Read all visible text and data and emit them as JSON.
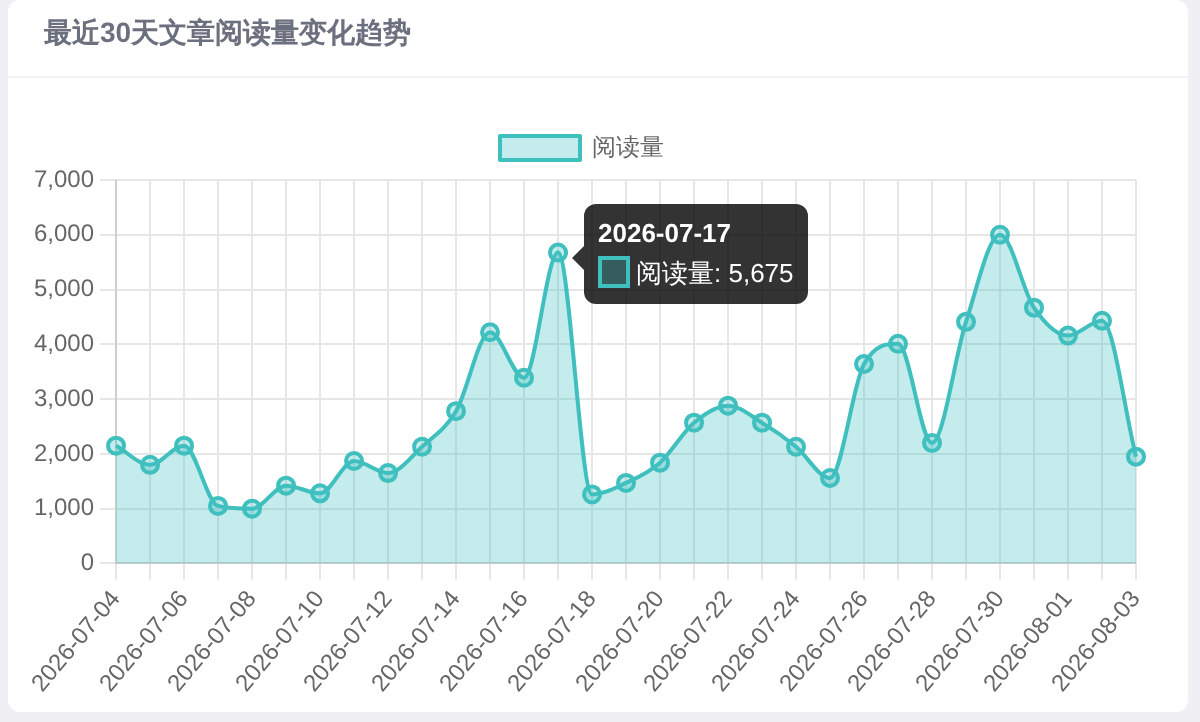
{
  "chart_data": {
    "type": "area",
    "title": "最近30天文章阅读量变化趋势",
    "categories": [
      "2026-07-04",
      null,
      "2026-07-06",
      null,
      "2026-07-08",
      null,
      "2026-07-10",
      null,
      "2026-07-12",
      null,
      "2026-07-14",
      null,
      "2026-07-16",
      null,
      "2026-07-18",
      null,
      "2026-07-20",
      null,
      "2026-07-22",
      null,
      "2026-07-24",
      null,
      "2026-07-26",
      null,
      "2026-07-28",
      null,
      "2026-07-30",
      null,
      "2026-08-01",
      null,
      "2026-08-03"
    ],
    "series": [
      {
        "name": "阅读量",
        "color": "#40bfbf",
        "values": [
          2150,
          1800,
          2150,
          1050,
          1000,
          1420,
          1280,
          1870,
          1650,
          2130,
          2780,
          4220,
          3390,
          5675,
          1260,
          1470,
          1840,
          2570,
          2880,
          2570,
          2130,
          1560,
          3640,
          4010,
          2200,
          4410,
          6000,
          4670,
          4160,
          4430,
          1950
        ]
      }
    ],
    "ylim": [
      0,
      7000
    ],
    "yticks": [
      {
        "value": 0,
        "label": "0"
      },
      {
        "value": 1000,
        "label": "1,000"
      },
      {
        "value": 2000,
        "label": "2,000"
      },
      {
        "value": 3000,
        "label": "3,000"
      },
      {
        "value": 4000,
        "label": "4,000"
      },
      {
        "value": 5000,
        "label": "5,000"
      },
      {
        "value": 6000,
        "label": "6,000"
      },
      {
        "value": 7000,
        "label": "7,000"
      }
    ],
    "grid": true,
    "legend": "top",
    "marker": "circle",
    "annotations": [
      "2026-07-17",
      "阅读量: 5,675"
    ]
  }
}
